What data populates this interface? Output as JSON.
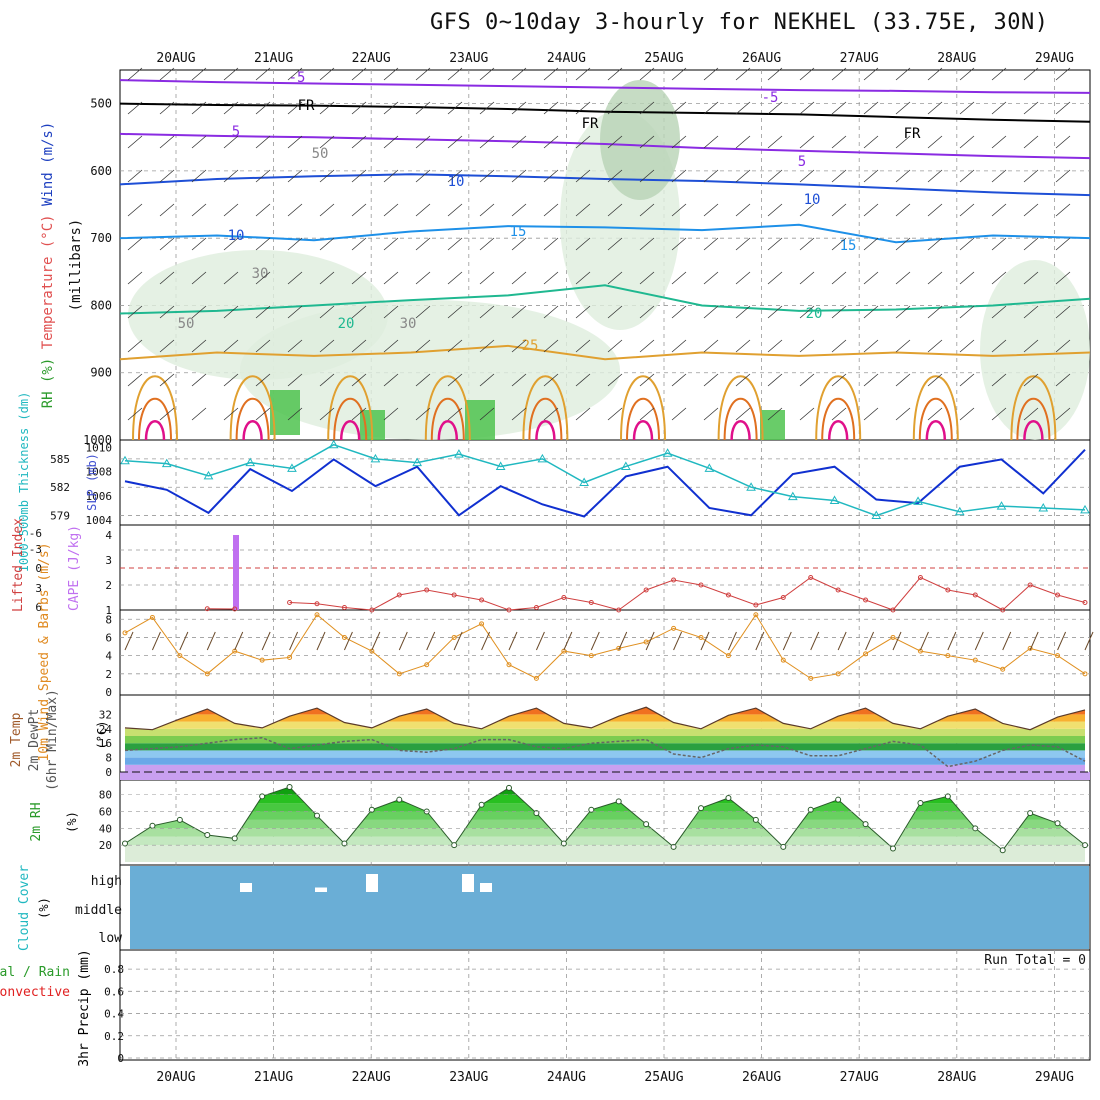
{
  "header": {
    "title": "GFS 0~10day 3-hourly for NEKHEL (33.75E, 30N)"
  },
  "colors": {
    "purple": "#8a2be2",
    "black": "#000000",
    "blue_dark": "#1e4fd6",
    "blue_light": "#1e90e8",
    "teal": "#1fb890",
    "orange": "#e0a030",
    "orange_dark": "#e07020",
    "magenta": "#e0108a",
    "rh_green": "#4fc34f",
    "cyan": "#20b8c0",
    "slp_blue": "#1030d0",
    "cape_violet": "#c070f0",
    "li_red": "#d04040",
    "wind_orange": "#e09020",
    "cloud_blue": "#6aaed6",
    "precip_green": "#2a8a2a"
  },
  "chart_data": [
    {
      "type": "line",
      "panel": "upper_air",
      "ylabel_parts": [
        "RH (%)",
        "Temperature (°C)",
        "Wind (m/s)"
      ],
      "ylabel2": "(millibars)",
      "y_ticks": [
        500,
        600,
        700,
        800,
        900,
        1000
      ],
      "ylim": [
        450,
        1000
      ],
      "x_dates": [
        "20AUG",
        "21AUG",
        "22AUG",
        "23AUG",
        "24AUG",
        "25AUG",
        "26AUG",
        "27AUG",
        "28AUG",
        "29AUG"
      ],
      "isotherm_labels": [
        "-5",
        "-5",
        "FR",
        "FR",
        "FR",
        "5",
        "5",
        "10",
        "10",
        "10",
        "15",
        "15",
        "20",
        "20",
        "25",
        "30",
        "30",
        "50",
        "50"
      ],
      "series": [
        {
          "name": "-5",
          "level_mb": [
            465,
            468,
            470,
            472,
            474,
            476,
            478,
            480,
            481,
            483,
            484
          ]
        },
        {
          "name": "FR",
          "level_mb": [
            500,
            502,
            503,
            505,
            508,
            512,
            514,
            516,
            520,
            524,
            527
          ]
        },
        {
          "name": "5",
          "level_mb": [
            545,
            548,
            550,
            553,
            556,
            560,
            566,
            570,
            574,
            578,
            581
          ]
        },
        {
          "name": "10",
          "level_mb": [
            620,
            612,
            608,
            605,
            608,
            612,
            615,
            620,
            626,
            632,
            636
          ]
        },
        {
          "name": "15",
          "level_mb": [
            700,
            696,
            703,
            690,
            682,
            684,
            688,
            680,
            706,
            696,
            700
          ]
        },
        {
          "name": "20",
          "level_mb": [
            812,
            808,
            800,
            792,
            785,
            770,
            800,
            808,
            806,
            800,
            790
          ]
        },
        {
          "name": "25",
          "level_mb": [
            880,
            870,
            875,
            870,
            860,
            880,
            870,
            875,
            870,
            875,
            870
          ]
        }
      ]
    },
    {
      "type": "line",
      "panel": "slp_thickness",
      "ylabel_left": "1000-500mb Thickness (dm)",
      "ylabel_right": "SLP (mb)",
      "left_ticks": [
        579,
        582,
        585
      ],
      "right_ticks": [
        1004,
        1006,
        1008,
        1010
      ],
      "series": [
        {
          "name": "SLP (mb)",
          "values": [
            1007.2,
            1006.5,
            1004.6,
            1008.2,
            1006.4,
            1009.0,
            1006.8,
            1008.4,
            1004.4,
            1006.8,
            1005.3,
            1004.3,
            1007.6,
            1008.4,
            1005.0,
            1004.4,
            1007.8,
            1008.4,
            1005.7,
            1005.4,
            1008.4,
            1009.0,
            1006.2,
            1009.8
          ]
        },
        {
          "name": "1000-500mb Thickness (dm)",
          "values": [
            584.8,
            584.5,
            583.2,
            584.6,
            584.0,
            586.5,
            585.0,
            584.6,
            585.5,
            584.2,
            585.0,
            582.5,
            584.2,
            585.6,
            584.0,
            582.0,
            581.0,
            580.6,
            579.0,
            580.5,
            579.4,
            580.0,
            579.8,
            579.6
          ]
        }
      ]
    },
    {
      "type": "line",
      "panel": "cape_li",
      "ylabel_left": "Lifted Index",
      "ylabel_right": "CAPE (J/kg)",
      "left_ticks": [
        "-6",
        "-3",
        "0",
        "3",
        "6"
      ],
      "right_ticks": [
        "1",
        "2",
        "3",
        "4"
      ],
      "cape_bar": {
        "date": "20AUG",
        "value": 4
      },
      "series": [
        {
          "name": "CAPE (J/kg)",
          "values": [
            0,
            0,
            0,
            1.05,
            1.04,
            0,
            1.3,
            1.25,
            1.1,
            1.0,
            1.6,
            1.8,
            1.6,
            1.4,
            1.0,
            1.1,
            1.5,
            1.3,
            1.0,
            1.8,
            2.2,
            2.0,
            1.6,
            1.2,
            1.5,
            2.3,
            1.8,
            1.4,
            1.0,
            2.3,
            1.8,
            1.6,
            1.0,
            2.0,
            1.6,
            1.3
          ]
        }
      ]
    },
    {
      "type": "line",
      "panel": "wind_10m",
      "ylabel": "10m Wind Speed & Barbs (m/s)",
      "y_ticks": [
        0,
        2,
        4,
        6,
        8
      ],
      "series": [
        {
          "name": "10m Wind Speed (m/s)",
          "values": [
            6.5,
            8.2,
            4.0,
            2.0,
            4.5,
            3.5,
            3.8,
            8.5,
            6.0,
            4.5,
            2.0,
            3.0,
            6.0,
            7.5,
            3.0,
            1.5,
            4.5,
            4.0,
            4.8,
            5.5,
            7.0,
            6.0,
            4.0,
            8.5,
            3.5,
            1.5,
            2.0,
            4.2,
            6.0,
            4.5,
            4.0,
            3.5,
            2.5,
            4.8,
            4.0,
            2.0
          ]
        }
      ]
    },
    {
      "type": "area",
      "panel": "temp_2m",
      "ylabel_parts": [
        "2m Temp",
        "2m DewPt",
        "(6hr Min/Max)"
      ],
      "unit": "(°C)",
      "y_ticks": [
        0,
        8,
        16,
        24,
        32
      ],
      "series": [
        {
          "name": "2m Temp",
          "values": [
            24.5,
            23.5,
            29.5,
            35.0,
            27.0,
            24.5,
            31.0,
            35.5,
            27.5,
            24.5,
            31.0,
            35.0,
            27.0,
            24.0,
            31.0,
            35.5,
            27.0,
            24.5,
            31.0,
            36.0,
            27.5,
            24.0,
            31.5,
            35.5,
            27.0,
            24.0,
            31.0,
            35.5,
            27.0,
            24.0,
            31.0,
            35.0,
            27.0,
            23.5,
            30.5,
            34.5
          ]
        },
        {
          "name": "2m DewPt",
          "values": [
            12,
            13,
            14,
            16,
            18,
            19,
            13,
            15,
            17,
            18,
            12,
            11,
            13,
            18,
            18,
            14,
            13,
            16,
            17,
            18,
            10,
            8,
            13,
            15,
            14,
            9,
            9,
            13,
            17,
            15,
            3,
            6,
            12,
            15,
            14,
            6
          ]
        }
      ]
    },
    {
      "type": "area",
      "panel": "rh_2m",
      "ylabel": "2m RH",
      "unit": "(%)",
      "y_ticks": [
        20,
        40,
        60,
        80
      ],
      "series": [
        {
          "name": "2m RH",
          "values": [
            22,
            43,
            50,
            32,
            28,
            78,
            89,
            55,
            22,
            62,
            74,
            60,
            20,
            68,
            88,
            58,
            22,
            62,
            72,
            45,
            18,
            64,
            76,
            50,
            18,
            62,
            74,
            45,
            16,
            70,
            78,
            40,
            14,
            58,
            46,
            20
          ]
        }
      ]
    },
    {
      "type": "bar",
      "panel": "cloud_cover",
      "ylabel": "Cloud Cover",
      "unit": "(%)",
      "levels": [
        "high",
        "middle",
        "low"
      ],
      "series": [
        {
          "name": "high",
          "values": [
            10,
            5,
            0,
            20,
            20,
            10,
            0,
            0,
            0
          ]
        }
      ]
    },
    {
      "type": "bar",
      "panel": "precip_3hr",
      "ylabel_parts": [
        "Total / Rain",
        "Convective",
        "3hr Precip (mm)"
      ],
      "y_ticks": [
        0,
        0.2,
        0.4,
        0.6,
        0.8
      ],
      "run_total": "Run Total = 0",
      "values": []
    }
  ]
}
